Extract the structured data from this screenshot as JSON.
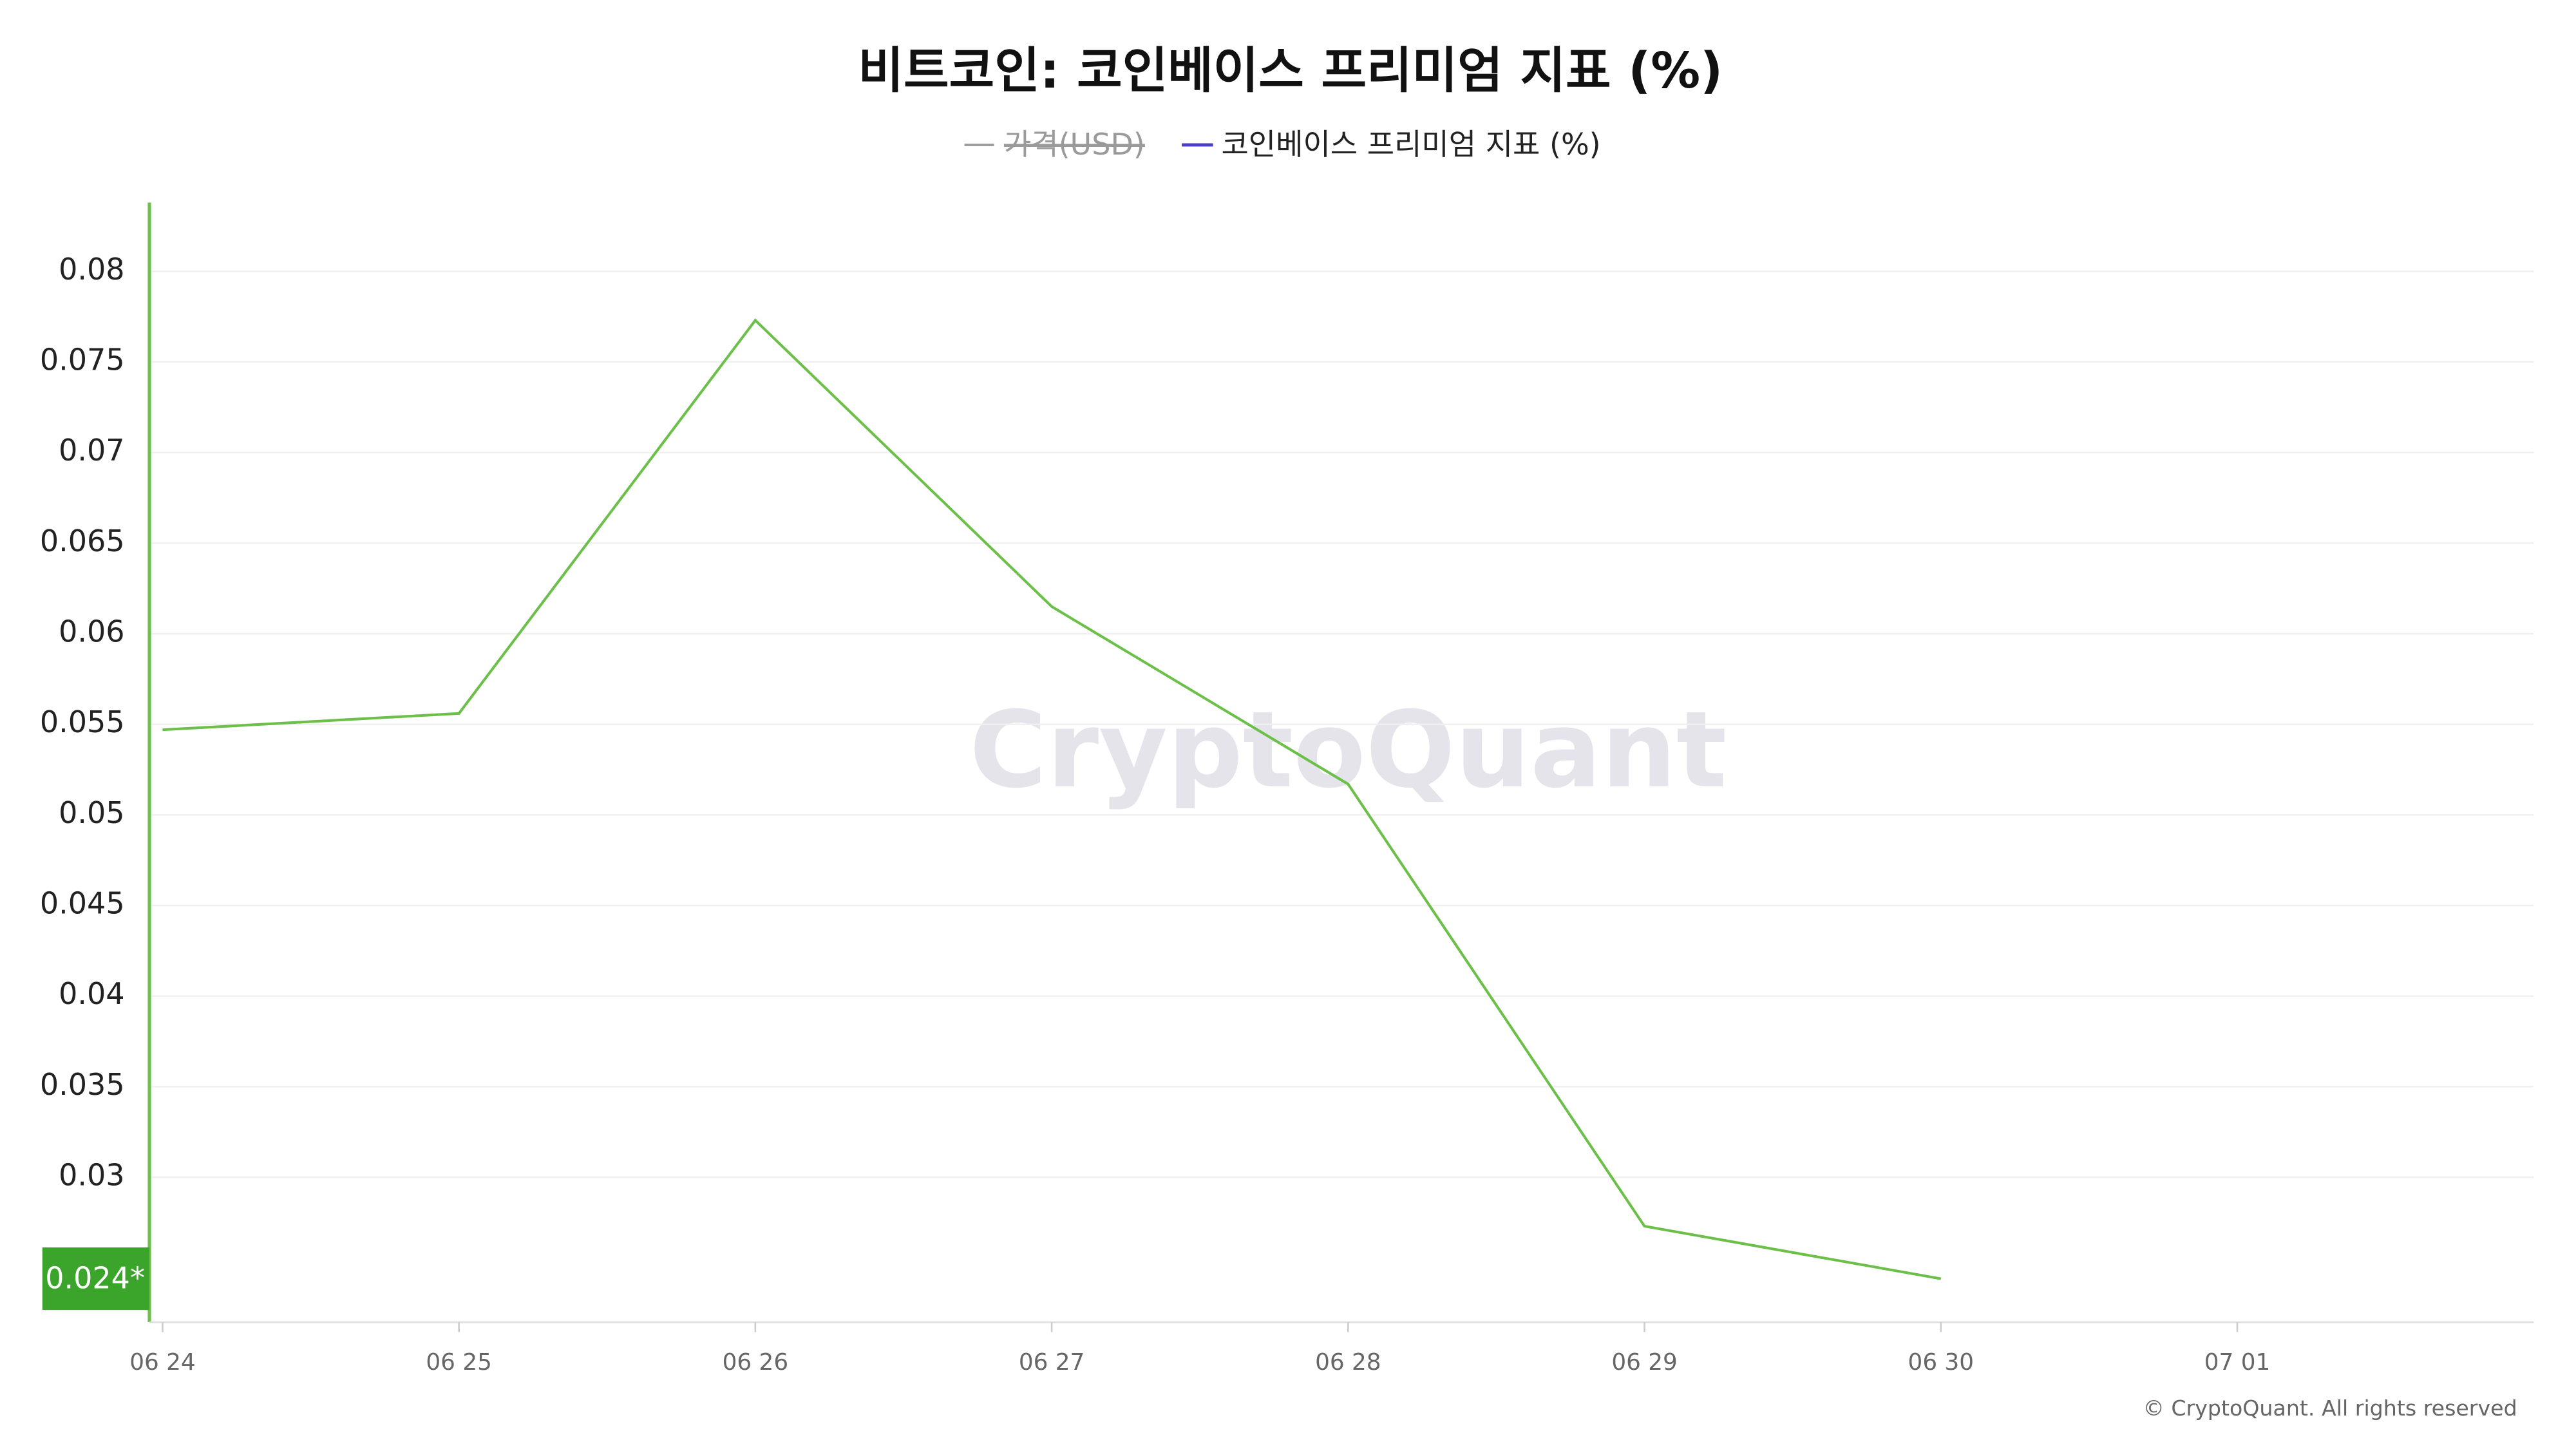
{
  "chart_data": {
    "type": "line",
    "title": "비트코인: 코인베이스 프리미엄 지표 (%)",
    "hidden_series": {
      "name": "가격(USD)",
      "color": "#9a9a9a"
    },
    "categories": [
      "06 24",
      "06 25",
      "06 26",
      "06 27",
      "06 28",
      "06 29",
      "06 30",
      "07 01"
    ],
    "series": [
      {
        "name": "코인베이스 프리미엄 지표 (%)",
        "color": "#6cc04a",
        "legend_color": "#4b3fc4",
        "values": [
          0.0547,
          0.0556,
          0.0773,
          0.0615,
          0.0517,
          0.0273,
          0.0244,
          null
        ]
      }
    ],
    "last_value_label": "0.024*",
    "ylim": [
      0.022,
      0.0838
    ],
    "yticks": [
      0.03,
      0.035,
      0.04,
      0.045,
      0.05,
      0.055,
      0.06,
      0.065,
      0.07,
      0.075,
      0.08
    ],
    "grid": true,
    "watermark": "CryptoQuant",
    "copyright": "© CryptoQuant. All rights reserved"
  }
}
